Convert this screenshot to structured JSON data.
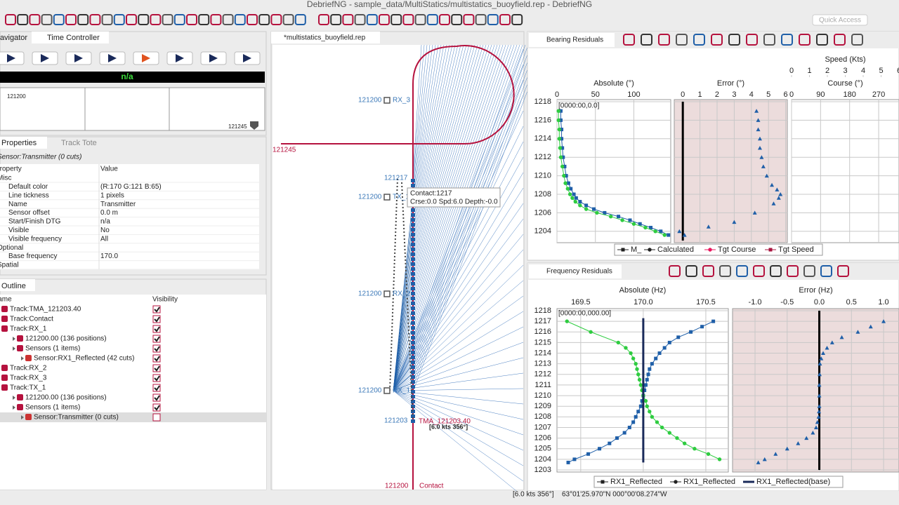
{
  "window": {
    "title": "DebriefNG - sample_data/MultiStatics/multistatics_buoyfield.rep - DebriefNG",
    "quick_access": "Quick Access"
  },
  "time_controller": {
    "tabs": [
      "Navigator",
      "Time Controller"
    ],
    "status": "n/a",
    "start": "121200",
    "end": "121245"
  },
  "properties": {
    "tabs": [
      "Properties",
      "Track Tote"
    ],
    "subject": "Sensor:Transmitter (0 cuts)",
    "header": [
      "Property",
      "Value"
    ],
    "rows": [
      {
        "property": "Misc"
      },
      {
        "property": "Default color",
        "value": "(R:170 G:121 B:65)"
      },
      {
        "property": "Line tickness",
        "value": "1 pixels"
      },
      {
        "property": "Name",
        "value": "Transmitter"
      },
      {
        "property": "Sensor offset",
        "value": "0.0 m"
      },
      {
        "property": "Start/Finish DTG",
        "value": "n/a"
      },
      {
        "property": "Visible",
        "value": "No"
      },
      {
        "property": "Visible frequency",
        "value": "All"
      },
      {
        "property": "Optional"
      },
      {
        "property": "Base frequency",
        "value": "170.0"
      },
      {
        "property": "Spatial"
      }
    ]
  },
  "outline": {
    "tab": "Outline",
    "header": [
      "Name",
      "Visibility"
    ],
    "rows": [
      {
        "label": "Track:TMA_121203.40",
        "visible": true
      },
      {
        "label": "Track:Contact",
        "visible": true
      },
      {
        "label": "Track:RX_1",
        "visible": true,
        "children": [
          {
            "label": "121200.00 (136 positions)",
            "visible": true
          },
          {
            "label": "Sensors (1 items)",
            "visible": true,
            "children": [
              {
                "label": "Sensor:RX1_Reflected (42 cuts)",
                "visible": true
              }
            ]
          }
        ]
      },
      {
        "label": "Track:RX_2",
        "visible": true
      },
      {
        "label": "Track:RX_3",
        "visible": true
      },
      {
        "label": "Track:TX_1",
        "visible": true,
        "children": [
          {
            "label": "121200.00 (136 positions)",
            "visible": true
          },
          {
            "label": "Sensors (1 items)",
            "visible": true,
            "children": [
              {
                "label": "Sensor:Transmitter (0 cuts)",
                "visible": false,
                "selected": true
              }
            ]
          }
        ]
      }
    ]
  },
  "plot": {
    "tab": "*multistatics_buoyfield.rep",
    "track_labels": [
      {
        "time": "121200",
        "name": "RX_3"
      },
      {
        "time": "121200",
        "name": "TX_1"
      },
      {
        "time": "121200",
        "name": "RX_2"
      },
      {
        "time": "121200",
        "name": "RX_1"
      }
    ],
    "end_label": "121245",
    "cursor_label": "121217",
    "tooltip": [
      "Contact:1217",
      "Crse:0.0 Spd:6.0 Depth:-0.0"
    ],
    "tma": {
      "time": "121203",
      "name": "TMA_121203.40",
      "vector": "[6.0 kts 356°]"
    },
    "contact": {
      "time": "121200",
      "name": "Contact"
    }
  },
  "bearing_residuals": {
    "tab": "Bearing Residuals",
    "note": "[0000:00,0.0]",
    "ylim": [
      1203,
      1218
    ],
    "yticks": [
      1204,
      1206,
      1208,
      1210,
      1212,
      1214,
      1216,
      1218
    ],
    "absolute": {
      "title": "Absolute (°)",
      "xlim": [
        0,
        148
      ],
      "xticks": [
        0,
        50,
        100
      ],
      "series": [
        {
          "name": "M_",
          "color": "#1f5fa8",
          "marker": "square",
          "y": [
            1203.6,
            1204,
            1204.4,
            1204.8,
            1205.2,
            1205.6,
            1206,
            1206.4,
            1206.8,
            1207.2,
            1207.6,
            1208,
            1208.6,
            1209.2,
            1210,
            1211,
            1212,
            1213,
            1214,
            1215,
            1216,
            1217
          ],
          "x": [
            145,
            135,
            122,
            108,
            95,
            80,
            62,
            48,
            38,
            30,
            25,
            22,
            18,
            15,
            12,
            10,
            8,
            7,
            6,
            6,
            5,
            5
          ]
        },
        {
          "name": "Calculated",
          "color": "#2ecc40",
          "marker": "circle",
          "y": [
            1203.6,
            1204,
            1204.4,
            1204.8,
            1205.2,
            1205.6,
            1206,
            1206.4,
            1206.8,
            1207.2,
            1207.6,
            1208,
            1208.6,
            1209.2,
            1210,
            1211,
            1212,
            1213,
            1214,
            1215,
            1216,
            1217
          ],
          "x": [
            140,
            128,
            115,
            100,
            85,
            70,
            52,
            38,
            30,
            24,
            20,
            17,
            14,
            11,
            9,
            7,
            5,
            4,
            3,
            3,
            2,
            2
          ]
        }
      ]
    },
    "error": {
      "title": "Error (°)",
      "xlim": [
        -0.5,
        6.1
      ],
      "xticks": [
        0,
        1,
        2,
        3,
        4,
        5,
        6
      ],
      "series": [
        {
          "color": "#000000",
          "marker": "line",
          "y": [
            1203,
            1218
          ],
          "x": [
            0,
            0
          ]
        },
        {
          "color": "#1f5fa8",
          "marker": "triangle",
          "y": [
            1203.6,
            1204,
            1204.5,
            1205,
            1206,
            1207,
            1207.6,
            1208,
            1208.5,
            1209,
            1210,
            1211,
            1212,
            1213,
            1214,
            1215,
            1216,
            1217
          ],
          "x": [
            0.1,
            -0.2,
            1.5,
            3.0,
            4.2,
            5.3,
            5.6,
            5.7,
            5.5,
            5.2,
            4.9,
            4.7,
            4.6,
            4.5,
            4.5,
            4.4,
            4.4,
            4.3
          ]
        }
      ]
    },
    "course": {
      "title": "Course (°)",
      "xlim": [
        0,
        333
      ],
      "xticks": [
        0,
        90,
        180,
        270
      ],
      "series": [
        {
          "name": "Tgt Course",
          "color": "#e8175d",
          "marker": "circle",
          "y": [],
          "x": []
        }
      ]
    },
    "speed": {
      "title": "Speed (Kts)",
      "xlim": [
        0,
        6
      ],
      "xticks": [
        0,
        1,
        2,
        3,
        4,
        5,
        6
      ],
      "series": [
        {
          "name": "Tgt Speed",
          "color": "#a8153f",
          "marker": "square",
          "y": [],
          "x": []
        }
      ]
    }
  },
  "frequency_residuals": {
    "tab": "Frequency Residuals",
    "note": "[0000:00,000.00]",
    "ylim": [
      1203,
      1218
    ],
    "yticks": [
      1203,
      1204,
      1205,
      1206,
      1207,
      1208,
      1209,
      1210,
      1211,
      1212,
      1213,
      1214,
      1215,
      1216,
      1217,
      1218
    ],
    "absolute": {
      "title": "Absolute (Hz)",
      "xlim": [
        169.31,
        170.68
      ],
      "xticks": [
        169.5,
        {
          "value": 170,
          "label": "170.0"
        },
        170.5
      ],
      "series": [
        {
          "name": "RX1_Reflected",
          "color": "#1f5fa8",
          "marker": "square",
          "y": [
            1203.7,
            1204,
            1204.5,
            1205,
            1205.5,
            1206,
            1206.5,
            1207,
            1207.5,
            1208,
            1208.5,
            1209,
            1209.5,
            1210,
            1210.5,
            1211,
            1211.5,
            1212,
            1212.5,
            1213,
            1213.5,
            1214,
            1214.5,
            1215,
            1215.5,
            1216,
            1216.5,
            1217
          ],
          "x": [
            169.4,
            169.45,
            169.56,
            169.65,
            169.73,
            169.79,
            169.85,
            169.89,
            169.92,
            169.94,
            169.96,
            169.98,
            169.99,
            170.0,
            170.01,
            170.02,
            170.03,
            170.04,
            170.05,
            170.07,
            170.1,
            170.13,
            170.17,
            170.21,
            170.28,
            170.38,
            170.47,
            170.56
          ]
        },
        {
          "name": "RX1_Reflected",
          "color": "#2ecc40",
          "marker": "circle",
          "y": [
            1204,
            1204.5,
            1205,
            1205.5,
            1206,
            1206.5,
            1207,
            1207.5,
            1208,
            1208.5,
            1209,
            1209.5,
            1210,
            1210.5,
            1211,
            1211.5,
            1212,
            1212.5,
            1213,
            1213.5,
            1214,
            1214.5,
            1215,
            1216,
            1217
          ],
          "x": [
            170.61,
            170.52,
            170.41,
            170.33,
            170.27,
            170.21,
            170.15,
            170.11,
            170.07,
            170.05,
            170.03,
            170.02,
            170.0,
            169.99,
            169.98,
            169.97,
            169.96,
            169.95,
            169.94,
            169.92,
            169.9,
            169.86,
            169.8,
            169.58,
            169.39
          ]
        },
        {
          "name": "RX1_Reflected(base)",
          "color": "#1a2a5a",
          "marker": "line",
          "y": [
            1203.7,
            1217.3
          ],
          "x": [
            170,
            170
          ]
        }
      ]
    },
    "error": {
      "title": "Error (Hz)",
      "xlim": [
        -1.35,
        1.24
      ],
      "xticks": [
        {
          "value": -1,
          "label": "-1.0"
        },
        -0.5,
        {
          "value": 0,
          "label": "0.0"
        },
        0.5,
        {
          "value": 1,
          "label": "1.0"
        }
      ],
      "series": [
        {
          "color": "#000000",
          "marker": "line",
          "y": [
            1203,
            1218
          ],
          "x": [
            0,
            0
          ]
        },
        {
          "color": "#1f5fa8",
          "marker": "triangle",
          "y": [
            1203.7,
            1204,
            1204.5,
            1205,
            1205.5,
            1206,
            1206.5,
            1207,
            1207.5,
            1208,
            1208.5,
            1209,
            1210,
            1211,
            1212,
            1213,
            1213.5,
            1214,
            1214.5,
            1215,
            1215.5,
            1216,
            1216.5,
            1217
          ],
          "x": [
            -0.95,
            -0.85,
            -0.68,
            -0.5,
            -0.33,
            -0.2,
            -0.1,
            -0.05,
            -0.03,
            -0.01,
            -0.005,
            0,
            0,
            0,
            0.005,
            0.01,
            0.03,
            0.06,
            0.12,
            0.2,
            0.35,
            0.6,
            0.8,
            1.0
          ]
        }
      ]
    }
  },
  "status_bar": {
    "vector": "[6.0 kts 356°]",
    "position": "63°01'25.970\"N 000°00'08.274\"W"
  }
}
